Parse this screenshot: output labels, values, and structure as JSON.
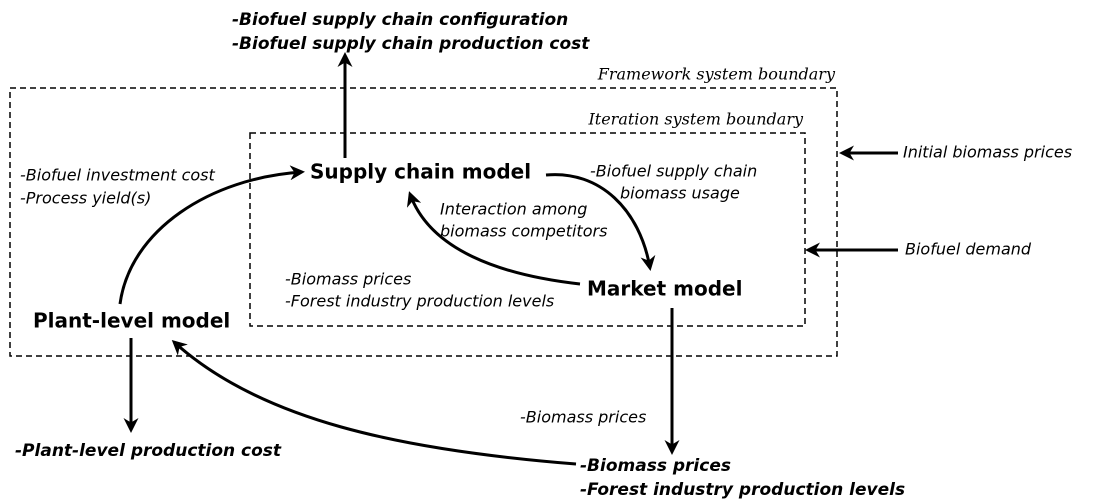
{
  "boundaries": {
    "framework": "Framework system boundary",
    "iteration": "Iteration system boundary"
  },
  "nodes": [
    {
      "label": "Supply chain model"
    },
    {
      "label": "Market model"
    },
    {
      "label": "Plant-level model"
    }
  ],
  "outputs": {
    "supply_chain": [
      "-Biofuel supply chain configuration",
      "-Biofuel supply chain production cost"
    ],
    "plant_level": [
      "-Plant-level production cost"
    ],
    "market": [
      "-Biomass prices",
      "-Forest industry production levels"
    ]
  },
  "inputs": [
    "Initial biomass prices",
    "Biofuel demand"
  ],
  "edge_labels": {
    "plant_to_supply": [
      "-Biofuel investment cost",
      "-Process yield(s)"
    ],
    "supply_to_market": [
      "-Biofuel supply chain",
      "biomass usage"
    ],
    "market_to_supply": [
      "Interaction among",
      "biomass competitors"
    ],
    "market_to_supply_values": [
      "-Biomass prices",
      "-Forest industry production levels"
    ],
    "market_to_plant": [
      "-Biomass prices"
    ]
  }
}
